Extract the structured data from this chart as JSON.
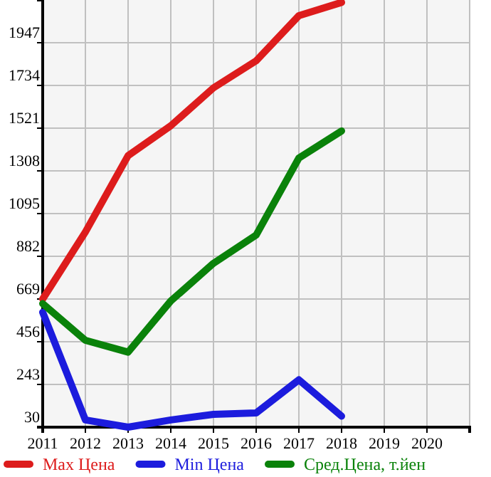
{
  "chart_data": {
    "type": "line",
    "x": [
      2011,
      2012,
      2013,
      2014,
      2015,
      2016,
      2017,
      2018
    ],
    "series": [
      {
        "name": "Max Цена",
        "color": "#dd1c1c",
        "values": [
          669,
          1003,
          1384,
          1533,
          1722,
          1857,
          2082,
          2148
        ]
      },
      {
        "name": "Min Цена",
        "color": "#1c1cdd",
        "values": [
          603,
          66,
          30,
          66,
          94,
          101,
          266,
          85
        ]
      },
      {
        "name": "Сред.Цена, т.йен",
        "color": "#0a820a",
        "values": [
          646,
          463,
          404,
          659,
          847,
          988,
          1372,
          1507
        ]
      }
    ],
    "xlim": [
      2011,
      2021
    ],
    "xticks": [
      2011,
      2012,
      2013,
      2014,
      2015,
      2016,
      2017,
      2018,
      2019,
      2020
    ],
    "ylim": [
      30,
      2160
    ],
    "yticks": [
      30,
      243,
      456,
      669,
      882,
      1095,
      1308,
      1521,
      1734,
      1947
    ],
    "grid": true,
    "legend": "bottom",
    "marker": "none",
    "line_style": "solid"
  }
}
